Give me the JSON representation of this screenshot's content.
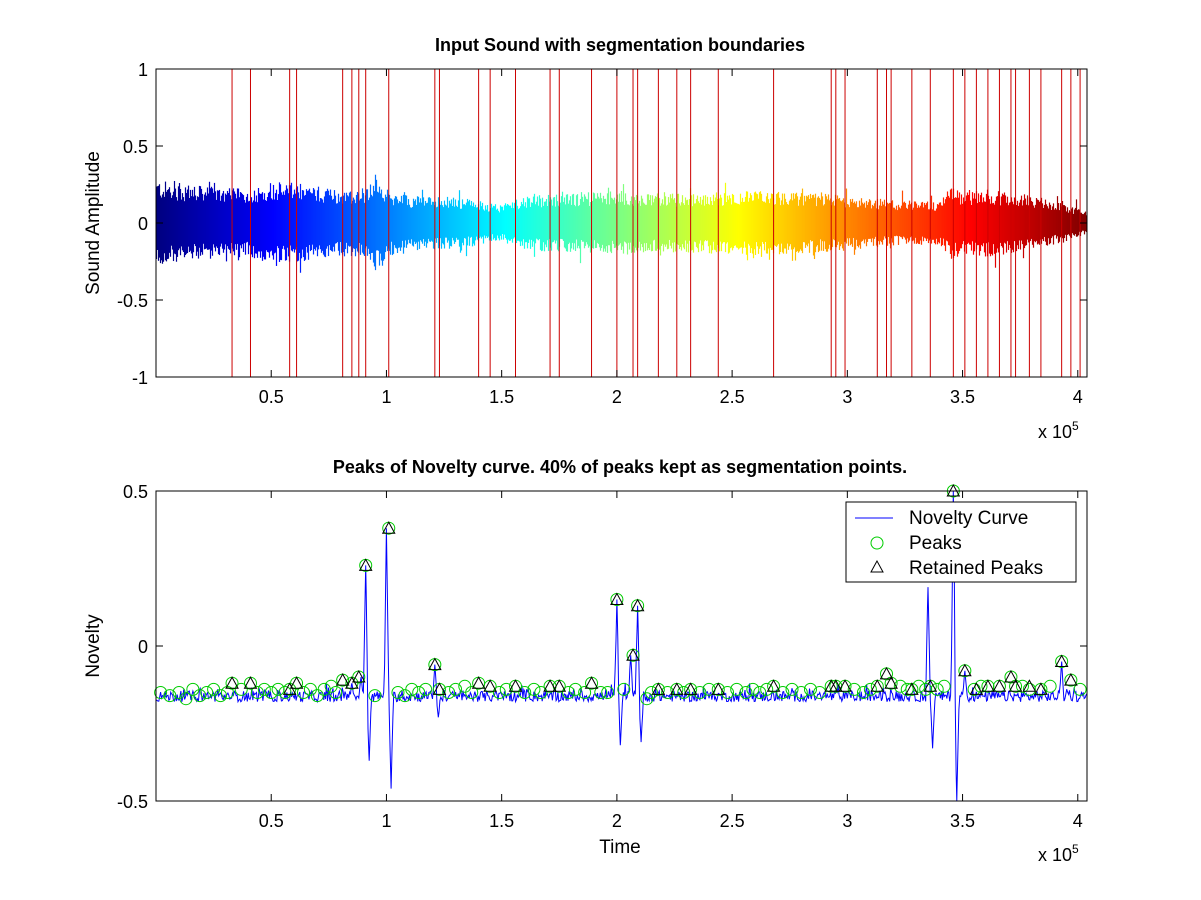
{
  "colors": {
    "boundary": "#cc0000",
    "novelty": "#0000ff",
    "peak_marker": "#00cc00",
    "retained_marker": "#000000",
    "axes": "#000000"
  },
  "chart_data": [
    {
      "type": "line",
      "title": "Input Sound with segmentation boundaries",
      "xlabel": "",
      "ylabel": "Sound Amplitude",
      "xlim": [
        0,
        404000
      ],
      "ylim": [
        -1,
        1
      ],
      "x_exponent_label": "x 10",
      "x_exponent_power": "5",
      "xticks": [
        50000,
        100000,
        150000,
        200000,
        250000,
        300000,
        350000,
        400000
      ],
      "xtick_labels": [
        "0.5",
        "1",
        "1.5",
        "2",
        "2.5",
        "3",
        "3.5",
        "4"
      ],
      "yticks": [
        -1,
        -0.5,
        0,
        0.5,
        1
      ],
      "ytick_labels": [
        "-1",
        "-0.5",
        "0",
        "0.5",
        "1"
      ],
      "colormap": "jet",
      "segmentation_boundaries": [
        33000,
        41000,
        58000,
        61000,
        81000,
        85000,
        88000,
        91000,
        101000,
        121000,
        123000,
        140000,
        145000,
        156000,
        171000,
        175000,
        189000,
        200000,
        207000,
        209000,
        218000,
        226000,
        232000,
        244000,
        268000,
        293000,
        295000,
        299000,
        313000,
        317000,
        319000,
        328000,
        336000,
        346000,
        351000,
        356000,
        361000,
        366000,
        371000,
        373000,
        379000,
        384000,
        393000,
        397000,
        401000,
        404000
      ],
      "envelope": {
        "x": [
          0,
          20000,
          40000,
          50000,
          60000,
          80000,
          90000,
          95000,
          100000,
          110000,
          130000,
          150000,
          160000,
          180000,
          200000,
          220000,
          240000,
          260000,
          280000,
          300000,
          320000,
          340000,
          345000,
          350000,
          360000,
          380000,
          395000,
          404000
        ],
        "amplitude": [
          0.28,
          0.24,
          0.22,
          0.27,
          0.26,
          0.22,
          0.23,
          0.32,
          0.22,
          0.18,
          0.17,
          0.12,
          0.18,
          0.19,
          0.21,
          0.19,
          0.2,
          0.21,
          0.2,
          0.18,
          0.15,
          0.14,
          0.24,
          0.2,
          0.22,
          0.18,
          0.12,
          0.08
        ]
      }
    },
    {
      "type": "line",
      "title": "Peaks of Novelty curve. 40% of peaks kept as segmentation points.",
      "xlabel": "Time",
      "ylabel": "Novelty",
      "xlim": [
        0,
        404000
      ],
      "ylim": [
        -0.5,
        0.5
      ],
      "x_exponent_label": "x 10",
      "x_exponent_power": "5",
      "xticks": [
        50000,
        100000,
        150000,
        200000,
        250000,
        300000,
        350000,
        400000
      ],
      "xtick_labels": [
        "0.5",
        "1",
        "1.5",
        "2",
        "2.5",
        "3",
        "3.5",
        "4"
      ],
      "yticks": [
        -0.5,
        0,
        0.5
      ],
      "ytick_labels": [
        "-0.5",
        "0",
        "0.5"
      ],
      "legend": {
        "position": "top-right",
        "entries": [
          "Novelty Curve",
          "Peaks",
          "Retained Peaks"
        ]
      },
      "novelty_curve": {
        "baseline": -0.18,
        "spikes": [
          {
            "x": 85000,
            "y": -0.12
          },
          {
            "x": 89000,
            "y": -0.1
          },
          {
            "x": 91000,
            "y": 0.26
          },
          {
            "x": 92500,
            "y": -0.37
          },
          {
            "x": 100000,
            "y": 0.38
          },
          {
            "x": 102000,
            "y": -0.46
          },
          {
            "x": 121000,
            "y": -0.06
          },
          {
            "x": 122500,
            "y": -0.23
          },
          {
            "x": 200000,
            "y": 0.15
          },
          {
            "x": 201500,
            "y": -0.32
          },
          {
            "x": 206000,
            "y": -0.03
          },
          {
            "x": 209000,
            "y": 0.13
          },
          {
            "x": 210500,
            "y": -0.31
          },
          {
            "x": 335000,
            "y": 0.19
          },
          {
            "x": 337000,
            "y": -0.33
          },
          {
            "x": 346000,
            "y": 0.5
          },
          {
            "x": 347500,
            "y": -0.5
          },
          {
            "x": 351000,
            "y": -0.08
          },
          {
            "x": 393000,
            "y": -0.05
          }
        ]
      },
      "peaks": {
        "x": [
          2000,
          6000,
          10000,
          13000,
          16000,
          19000,
          22000,
          25000,
          28000,
          31000,
          33000,
          37000,
          41000,
          44000,
          47000,
          50000,
          53000,
          56000,
          58000,
          61000,
          64000,
          67000,
          70000,
          73000,
          76000,
          78000,
          81000,
          85000,
          88000,
          91000,
          95000,
          101000,
          105000,
          108000,
          111000,
          114000,
          117000,
          121000,
          123000,
          127000,
          130000,
          134000,
          137000,
          140000,
          145000,
          149000,
          152000,
          156000,
          160000,
          164000,
          167000,
          171000,
          175000,
          179000,
          182000,
          186000,
          189000,
          193000,
          196000,
          200000,
          203000,
          207000,
          209000,
          213000,
          215000,
          218000,
          222000,
          226000,
          229000,
          232000,
          236000,
          240000,
          244000,
          248000,
          252000,
          256000,
          259000,
          262000,
          265000,
          268000,
          272000,
          276000,
          280000,
          284000,
          288000,
          293000,
          295000,
          299000,
          303000,
          307000,
          310000,
          313000,
          317000,
          319000,
          323000,
          326000,
          328000,
          331000,
          334000,
          336000,
          339000,
          342000,
          346000,
          351000,
          355000,
          358000,
          361000,
          366000,
          371000,
          373000,
          376000,
          379000,
          384000,
          388000,
          393000,
          397000,
          401000
        ],
        "y": [
          -0.15,
          -0.16,
          -0.15,
          -0.17,
          -0.14,
          -0.16,
          -0.15,
          -0.14,
          -0.16,
          -0.15,
          -0.12,
          -0.14,
          -0.12,
          -0.15,
          -0.14,
          -0.15,
          -0.14,
          -0.15,
          -0.14,
          -0.12,
          -0.15,
          -0.14,
          -0.16,
          -0.14,
          -0.13,
          -0.15,
          -0.11,
          -0.12,
          -0.1,
          0.26,
          -0.16,
          0.38,
          -0.15,
          -0.16,
          -0.14,
          -0.15,
          -0.14,
          -0.06,
          -0.14,
          -0.15,
          -0.14,
          -0.13,
          -0.15,
          -0.12,
          -0.13,
          -0.15,
          -0.14,
          -0.13,
          -0.15,
          -0.14,
          -0.15,
          -0.13,
          -0.13,
          -0.15,
          -0.14,
          -0.15,
          -0.12,
          -0.15,
          -0.15,
          0.15,
          -0.14,
          -0.03,
          0.13,
          -0.17,
          -0.15,
          -0.14,
          -0.15,
          -0.14,
          -0.15,
          -0.14,
          -0.15,
          -0.14,
          -0.14,
          -0.15,
          -0.14,
          -0.15,
          -0.14,
          -0.15,
          -0.14,
          -0.13,
          -0.15,
          -0.14,
          -0.15,
          -0.14,
          -0.15,
          -0.13,
          -0.13,
          -0.13,
          -0.14,
          -0.15,
          -0.14,
          -0.13,
          -0.09,
          -0.12,
          -0.13,
          -0.14,
          -0.14,
          -0.13,
          -0.14,
          -0.13,
          -0.14,
          -0.13,
          0.5,
          -0.08,
          -0.14,
          -0.13,
          -0.13,
          -0.13,
          -0.1,
          -0.13,
          -0.13,
          -0.14,
          -0.14,
          -0.13,
          -0.05,
          -0.11,
          -0.14
        ]
      },
      "retained_peaks": {
        "x": [
          33000,
          41000,
          58000,
          61000,
          81000,
          85000,
          88000,
          91000,
          101000,
          121000,
          123000,
          140000,
          145000,
          156000,
          171000,
          175000,
          189000,
          200000,
          207000,
          209000,
          218000,
          226000,
          232000,
          244000,
          268000,
          293000,
          295000,
          299000,
          313000,
          317000,
          319000,
          328000,
          336000,
          346000,
          351000,
          356000,
          361000,
          366000,
          371000,
          373000,
          379000,
          384000,
          393000,
          397000
        ],
        "y": [
          -0.12,
          -0.12,
          -0.14,
          -0.12,
          -0.11,
          -0.12,
          -0.1,
          0.26,
          0.38,
          -0.06,
          -0.14,
          -0.12,
          -0.13,
          -0.13,
          -0.13,
          -0.13,
          -0.12,
          0.15,
          -0.03,
          0.13,
          -0.14,
          -0.14,
          -0.14,
          -0.14,
          -0.13,
          -0.13,
          -0.13,
          -0.13,
          -0.13,
          -0.09,
          -0.12,
          -0.14,
          -0.13,
          0.5,
          -0.08,
          -0.14,
          -0.13,
          -0.13,
          -0.1,
          -0.13,
          -0.13,
          -0.14,
          -0.05,
          -0.11
        ]
      }
    }
  ]
}
